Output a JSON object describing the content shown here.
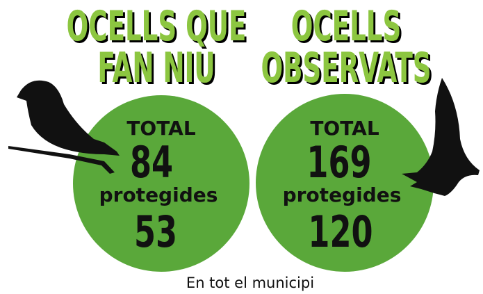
{
  "panels": [
    {
      "title": [
        "OCELLS QUE",
        "FAN NIU"
      ],
      "total_label": "TOTAL",
      "total": 84,
      "protected_label": "protegides",
      "protected": 53
    },
    {
      "title": [
        "OCELLS",
        "OBSERVATS"
      ],
      "total_label": "TOTAL",
      "total": 169,
      "protected_label": "protegides",
      "protected": 120
    }
  ],
  "footer": "En tot el municipi"
}
